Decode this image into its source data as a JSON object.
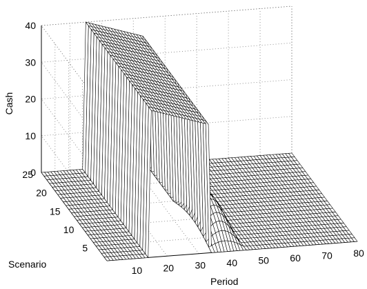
{
  "chart_data": {
    "type": "surface",
    "xlabel": "Period",
    "ylabel": "Scenario",
    "zlabel": "Cash",
    "x_ticks": [
      10,
      20,
      30,
      40,
      50,
      60,
      70,
      80
    ],
    "y_ticks": [
      5,
      10,
      15,
      20,
      25
    ],
    "z_ticks": [
      0,
      10,
      20,
      30,
      40
    ],
    "xlim": [
      1,
      80
    ],
    "ylim": [
      1,
      25
    ],
    "zlim": [
      0,
      40
    ],
    "grid": true,
    "surface": {
      "x_range": [
        1,
        80
      ],
      "y_range": [
        1,
        25
      ],
      "baseline_z": 0,
      "ridge": {
        "period_start": 14,
        "period_peak": 15,
        "period_end": 33,
        "cash_at_start": 40,
        "cash_at_end": 35
      },
      "bump": {
        "period_start": 33,
        "period_end": 45,
        "scenario_start": 1,
        "scenario_end": 15,
        "peak_cash": 8.5
      }
    }
  }
}
